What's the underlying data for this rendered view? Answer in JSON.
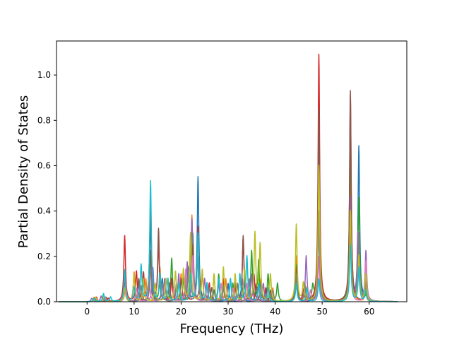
{
  "chart_data": {
    "type": "line",
    "title": "",
    "xlabel": "Frequency (THz)",
    "ylabel": "Partial Density of States",
    "xlim": [
      -6.5,
      68
    ],
    "ylim": [
      0,
      1.15
    ],
    "xticks": [
      0,
      10,
      20,
      30,
      40,
      50,
      60
    ],
    "yticks": [
      0.0,
      0.2,
      0.4,
      0.6,
      0.8,
      1.0
    ],
    "xtick_labels": [
      "0",
      "10",
      "20",
      "30",
      "40",
      "50",
      "60"
    ],
    "ytick_labels": [
      "0.0",
      "0.2",
      "0.4",
      "0.6",
      "0.8",
      "1.0"
    ],
    "grid": false,
    "legend": "none",
    "x_range": [
      -6,
      66
    ],
    "series": [
      {
        "color": "#1f77b4",
        "peaks": [
          [
            1.5,
            0.015
          ],
          [
            3.5,
            0.03
          ],
          [
            8,
            0.12
          ],
          [
            12,
            0.08
          ],
          [
            13.5,
            0.35
          ],
          [
            16,
            0.1
          ],
          [
            19,
            0.06
          ],
          [
            21.5,
            0.15
          ],
          [
            23.6,
            0.55
          ],
          [
            27,
            0.05
          ],
          [
            30,
            0.08
          ],
          [
            33,
            0.06
          ],
          [
            36,
            0.08
          ],
          [
            38,
            0.05
          ],
          [
            44.5,
            0.12
          ],
          [
            49.3,
            0.35
          ],
          [
            56,
            0.5
          ],
          [
            57.8,
            0.68
          ],
          [
            59.3,
            0.1
          ]
        ]
      },
      {
        "color": "#ff7f0e",
        "peaks": [
          [
            1.5,
            0.02
          ],
          [
            3.5,
            0.02
          ],
          [
            8,
            0.1
          ],
          [
            10,
            0.13
          ],
          [
            12.5,
            0.1
          ],
          [
            15.5,
            0.15
          ],
          [
            17.5,
            0.08
          ],
          [
            20,
            0.12
          ],
          [
            22.3,
            0.38
          ],
          [
            24.5,
            0.12
          ],
          [
            27,
            0.12
          ],
          [
            29.5,
            0.1
          ],
          [
            32,
            0.08
          ],
          [
            34.5,
            0.1
          ],
          [
            37,
            0.1
          ],
          [
            39.5,
            0.06
          ],
          [
            44.5,
            0.2
          ],
          [
            46.5,
            0.06
          ],
          [
            49.3,
            0.8
          ],
          [
            56,
            0.6
          ],
          [
            59.2,
            0.05
          ]
        ]
      },
      {
        "color": "#2ca02c",
        "peaks": [
          [
            2,
            0.015
          ],
          [
            4,
            0.02
          ],
          [
            8,
            0.12
          ],
          [
            11,
            0.1
          ],
          [
            13.5,
            0.2
          ],
          [
            15.5,
            0.12
          ],
          [
            18,
            0.19
          ],
          [
            20.5,
            0.1
          ],
          [
            22.5,
            0.3
          ],
          [
            25.5,
            0.08
          ],
          [
            28,
            0.12
          ],
          [
            31,
            0.08
          ],
          [
            33.5,
            0.1
          ],
          [
            35,
            0.22
          ],
          [
            36.5,
            0.18
          ],
          [
            38.5,
            0.12
          ],
          [
            40.5,
            0.08
          ],
          [
            44.5,
            0.16
          ],
          [
            48,
            0.06
          ],
          [
            49.3,
            0.9
          ],
          [
            56,
            0.7
          ],
          [
            57.8,
            0.45
          ],
          [
            59.5,
            0.05
          ]
        ]
      },
      {
        "color": "#d62728",
        "peaks": [
          [
            2,
            0.02
          ],
          [
            4.5,
            0.015
          ],
          [
            8,
            0.29
          ],
          [
            10.5,
            0.13
          ],
          [
            12,
            0.12
          ],
          [
            13.5,
            0.45
          ],
          [
            15.2,
            0.25
          ],
          [
            18,
            0.1
          ],
          [
            21,
            0.12
          ],
          [
            23.6,
            0.33
          ],
          [
            26,
            0.08
          ],
          [
            29,
            0.1
          ],
          [
            31.5,
            0.06
          ],
          [
            33.2,
            0.28
          ],
          [
            35.5,
            0.12
          ],
          [
            38,
            0.06
          ],
          [
            44.5,
            0.1
          ],
          [
            46,
            0.05
          ],
          [
            49.3,
            1.09
          ],
          [
            56,
            0.9
          ],
          [
            57.8,
            0.2
          ],
          [
            59.3,
            0.1
          ]
        ]
      },
      {
        "color": "#9467bd",
        "peaks": [
          [
            1,
            0.015
          ],
          [
            3,
            0.025
          ],
          [
            8,
            0.1
          ],
          [
            11,
            0.08
          ],
          [
            14,
            0.15
          ],
          [
            16.5,
            0.1
          ],
          [
            19.5,
            0.12
          ],
          [
            21.3,
            0.16
          ],
          [
            22.3,
            0.36
          ],
          [
            25,
            0.1
          ],
          [
            28,
            0.08
          ],
          [
            30.5,
            0.1
          ],
          [
            33,
            0.1
          ],
          [
            35,
            0.12
          ],
          [
            37.5,
            0.08
          ],
          [
            44.5,
            0.1
          ],
          [
            46.6,
            0.2
          ],
          [
            49.3,
            0.37
          ],
          [
            56,
            0.46
          ],
          [
            57.6,
            0.3
          ],
          [
            59.3,
            0.22
          ]
        ]
      },
      {
        "color": "#8c564b",
        "peaks": [
          [
            2,
            0.01
          ],
          [
            4,
            0.02
          ],
          [
            8,
            0.08
          ],
          [
            11,
            0.1
          ],
          [
            13.5,
            0.22
          ],
          [
            15.2,
            0.32
          ],
          [
            17.5,
            0.08
          ],
          [
            20,
            0.1
          ],
          [
            22.5,
            0.25
          ],
          [
            24,
            0.1
          ],
          [
            26.5,
            0.06
          ],
          [
            29,
            0.06
          ],
          [
            31.5,
            0.08
          ],
          [
            33.2,
            0.29
          ],
          [
            36,
            0.08
          ],
          [
            39,
            0.05
          ],
          [
            44.5,
            0.15
          ],
          [
            49.3,
            0.85
          ],
          [
            56,
            0.93
          ],
          [
            59.2,
            0.08
          ]
        ]
      },
      {
        "color": "#e377c2",
        "peaks": [
          [
            2,
            0.015
          ],
          [
            3.8,
            0.02
          ],
          [
            8.2,
            0.08
          ],
          [
            10.5,
            0.06
          ],
          [
            13.2,
            0.12
          ],
          [
            16,
            0.08
          ],
          [
            18.5,
            0.06
          ],
          [
            21,
            0.14
          ],
          [
            22.5,
            0.2
          ],
          [
            25.5,
            0.06
          ],
          [
            28.5,
            0.08
          ],
          [
            31,
            0.06
          ],
          [
            34,
            0.08
          ],
          [
            36.5,
            0.06
          ],
          [
            44.5,
            0.08
          ],
          [
            47.5,
            0.05
          ],
          [
            49.3,
            0.2
          ],
          [
            56,
            0.3
          ],
          [
            59.3,
            0.18
          ]
        ]
      },
      {
        "color": "#7f7f7f",
        "peaks": [
          [
            1.8,
            0.012
          ],
          [
            3.6,
            0.018
          ],
          [
            8,
            0.07
          ],
          [
            11.5,
            0.07
          ],
          [
            13.5,
            0.15
          ],
          [
            16,
            0.08
          ],
          [
            19,
            0.08
          ],
          [
            21.5,
            0.12
          ],
          [
            23.5,
            0.2
          ],
          [
            26,
            0.06
          ],
          [
            29,
            0.07
          ],
          [
            32,
            0.08
          ],
          [
            34.5,
            0.1
          ],
          [
            37,
            0.08
          ],
          [
            39.5,
            0.05
          ],
          [
            44.5,
            0.12
          ],
          [
            46.3,
            0.08
          ],
          [
            49.3,
            0.4
          ],
          [
            56,
            0.35
          ],
          [
            57.8,
            0.3
          ],
          [
            59.3,
            0.06
          ]
        ]
      },
      {
        "color": "#bcbd22",
        "peaks": [
          [
            1.8,
            0.02
          ],
          [
            3.6,
            0.025
          ],
          [
            8,
            0.06
          ],
          [
            10,
            0.12
          ],
          [
            12,
            0.1
          ],
          [
            14.5,
            0.08
          ],
          [
            16.8,
            0.1
          ],
          [
            18.8,
            0.13
          ],
          [
            20.5,
            0.14
          ],
          [
            22,
            0.3
          ],
          [
            24.5,
            0.14
          ],
          [
            27,
            0.12
          ],
          [
            29,
            0.15
          ],
          [
            31.5,
            0.12
          ],
          [
            33.5,
            0.14
          ],
          [
            35.7,
            0.3
          ],
          [
            36.8,
            0.25
          ],
          [
            39,
            0.12
          ],
          [
            44.5,
            0.34
          ],
          [
            46,
            0.08
          ],
          [
            49.3,
            0.6
          ],
          [
            56,
            0.4
          ],
          [
            57.8,
            0.2
          ],
          [
            59.3,
            0.12
          ]
        ]
      },
      {
        "color": "#17becf",
        "peaks": [
          [
            1.5,
            0.015
          ],
          [
            3.5,
            0.035
          ],
          [
            5,
            0.02
          ],
          [
            8,
            0.14
          ],
          [
            10,
            0.06
          ],
          [
            11.5,
            0.16
          ],
          [
            13.5,
            0.53
          ],
          [
            15.5,
            0.12
          ],
          [
            17.2,
            0.1
          ],
          [
            19.5,
            0.08
          ],
          [
            22,
            0.12
          ],
          [
            23.6,
            0.3
          ],
          [
            25.5,
            0.08
          ],
          [
            28,
            0.1
          ],
          [
            30.5,
            0.1
          ],
          [
            32.5,
            0.12
          ],
          [
            34,
            0.2
          ],
          [
            36.5,
            0.08
          ],
          [
            38.5,
            0.06
          ],
          [
            44.5,
            0.08
          ],
          [
            46.8,
            0.06
          ],
          [
            49.3,
            0.1
          ],
          [
            56,
            0.25
          ],
          [
            57.8,
            0.15
          ],
          [
            59.3,
            0.05
          ]
        ]
      }
    ]
  }
}
